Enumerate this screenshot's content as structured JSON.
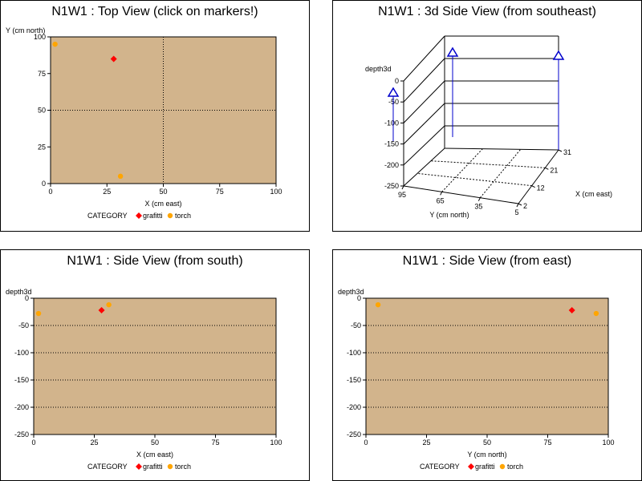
{
  "colors": {
    "plot_bg": "#d2b48c",
    "grafitti": "#ff0000",
    "torch": "#ffa500",
    "marker3d": "#0000cc"
  },
  "legend": {
    "title": "CATEGORY",
    "items": [
      "grafitti",
      "torch"
    ]
  },
  "chart_data": [
    {
      "id": "top",
      "type": "scatter",
      "title": "N1W1 : Top View (click on markers!)",
      "xlabel": "X (cm east)",
      "ylabel": "Y (cm north)",
      "xlim": [
        0,
        100
      ],
      "ylim": [
        0,
        100
      ],
      "xticks": [
        0,
        25,
        50,
        75,
        100
      ],
      "yticks": [
        0,
        25,
        50,
        75,
        100
      ],
      "reflines": {
        "x": [
          50
        ],
        "y": [
          50
        ]
      },
      "series": [
        {
          "name": "grafitti",
          "marker": "diamond",
          "points": [
            [
              28,
              85
            ]
          ]
        },
        {
          "name": "torch",
          "marker": "dot",
          "points": [
            [
              2,
              95
            ],
            [
              31,
              5
            ]
          ]
        }
      ]
    },
    {
      "id": "side3d",
      "type": "scatter",
      "title": "N1W1 : 3d Side View (from southeast)",
      "zlabel": "depth3d",
      "xlabel": "X (cm east)",
      "ylabel": "Y (cm north)",
      "zticks": [
        0,
        -50,
        -100,
        -150,
        -200,
        -250
      ],
      "xticks": [
        2,
        12,
        21,
        31
      ],
      "yticks": [
        95,
        65,
        35,
        5
      ]
    },
    {
      "id": "south",
      "type": "scatter",
      "title": "N1W1 : Side View (from south)",
      "xlabel": "X (cm east)",
      "ylabel": "depth3d",
      "xlim": [
        0,
        100
      ],
      "ylim": [
        -250,
        0
      ],
      "xticks": [
        0,
        25,
        50,
        75,
        100
      ],
      "yticks": [
        0,
        -50,
        -100,
        -150,
        -200,
        -250
      ],
      "series": [
        {
          "name": "grafitti",
          "marker": "diamond",
          "points": [
            [
              28,
              -22
            ]
          ]
        },
        {
          "name": "torch",
          "marker": "dot",
          "points": [
            [
              2,
              -28
            ],
            [
              31,
              -12
            ]
          ]
        }
      ]
    },
    {
      "id": "east",
      "type": "scatter",
      "title": "N1W1 : Side View (from east)",
      "xlabel": "Y (cm north)",
      "ylabel": "depth3d",
      "xlim": [
        0,
        100
      ],
      "ylim": [
        -250,
        0
      ],
      "xticks": [
        0,
        25,
        50,
        75,
        100
      ],
      "yticks": [
        0,
        -50,
        -100,
        -150,
        -200,
        -250
      ],
      "series": [
        {
          "name": "grafitti",
          "marker": "diamond",
          "points": [
            [
              85,
              -22
            ]
          ]
        },
        {
          "name": "torch",
          "marker": "dot",
          "points": [
            [
              5,
              -12
            ],
            [
              95,
              -28
            ]
          ]
        }
      ]
    }
  ]
}
